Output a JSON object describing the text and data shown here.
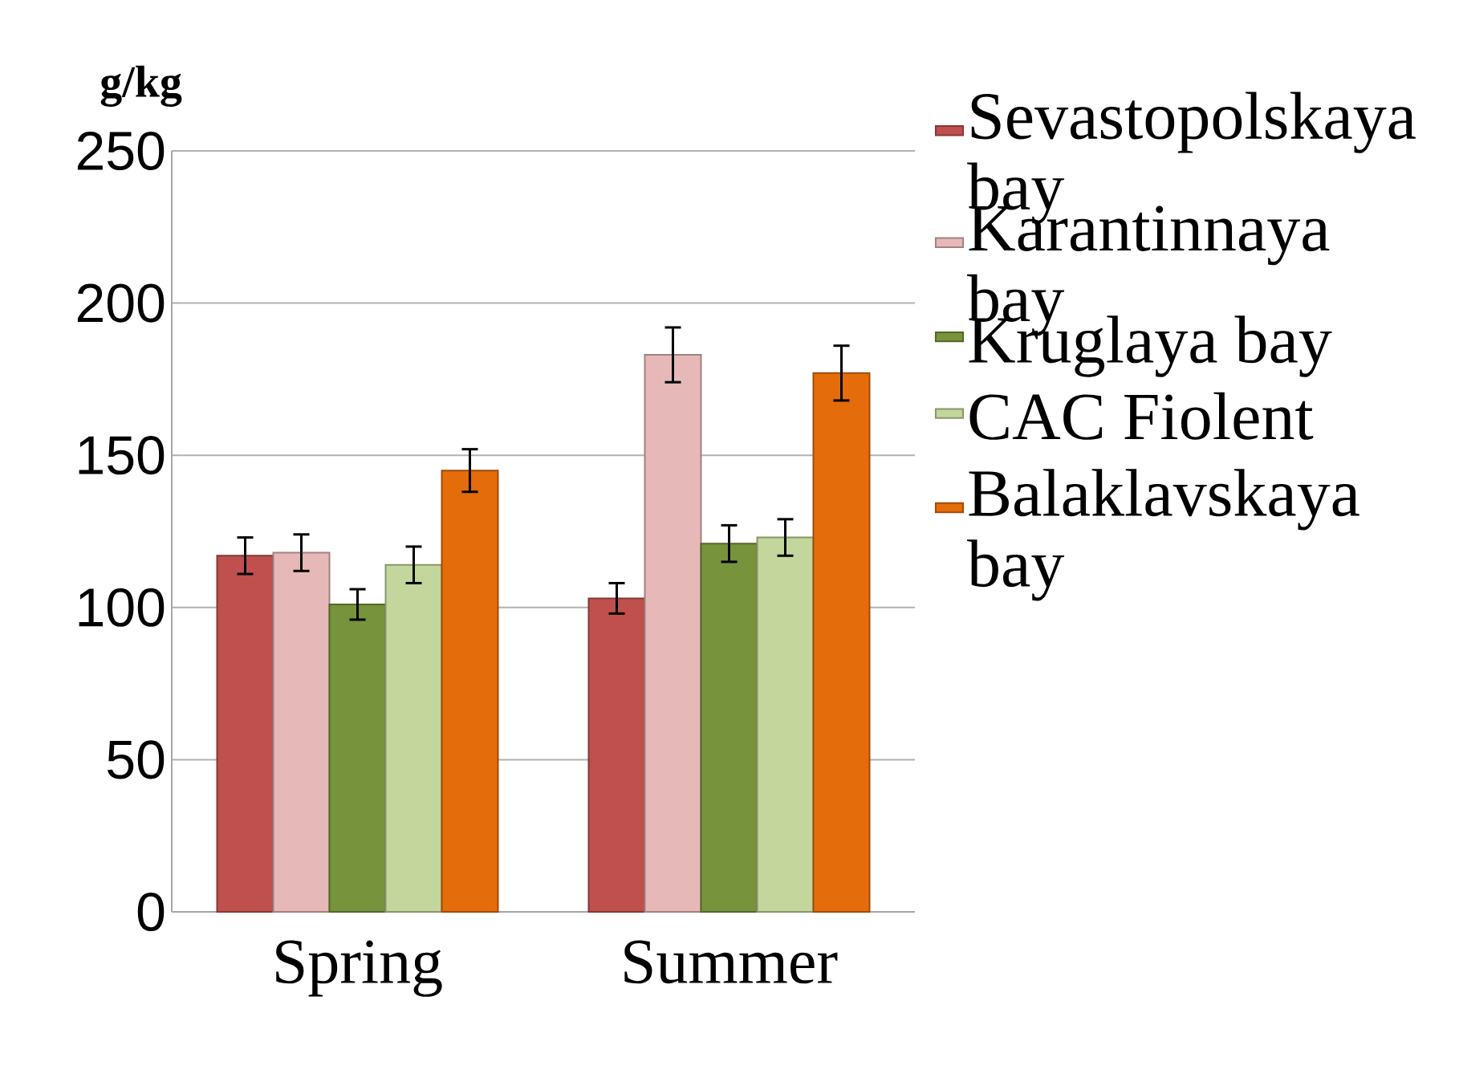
{
  "chart_data": {
    "type": "bar",
    "ylabel": "g/kg",
    "categories": [
      "Spring",
      "Summer"
    ],
    "series": [
      {
        "name": "Sevastopolskaya bay",
        "color": "#c0504d",
        "values": [
          117,
          103
        ],
        "errors": [
          6,
          5
        ]
      },
      {
        "name": "Karantinnaya bay",
        "color": "#e6b9b8",
        "values": [
          118,
          183
        ],
        "errors": [
          6,
          9
        ]
      },
      {
        "name": "Kruglaya bay",
        "color": "#77933c",
        "values": [
          101,
          121
        ],
        "errors": [
          5,
          6
        ]
      },
      {
        "name": "CAC Fiolent",
        "color": "#c3d69b",
        "values": [
          114,
          123
        ],
        "errors": [
          6,
          6
        ]
      },
      {
        "name": "Balaklavskaya bay",
        "color": "#e46c0a",
        "values": [
          145,
          177
        ],
        "errors": [
          7,
          9
        ]
      }
    ],
    "ylim": [
      0,
      250
    ],
    "yticks": [
      0,
      50,
      100,
      150,
      200,
      250
    ],
    "grid": "y",
    "legend": "right"
  }
}
